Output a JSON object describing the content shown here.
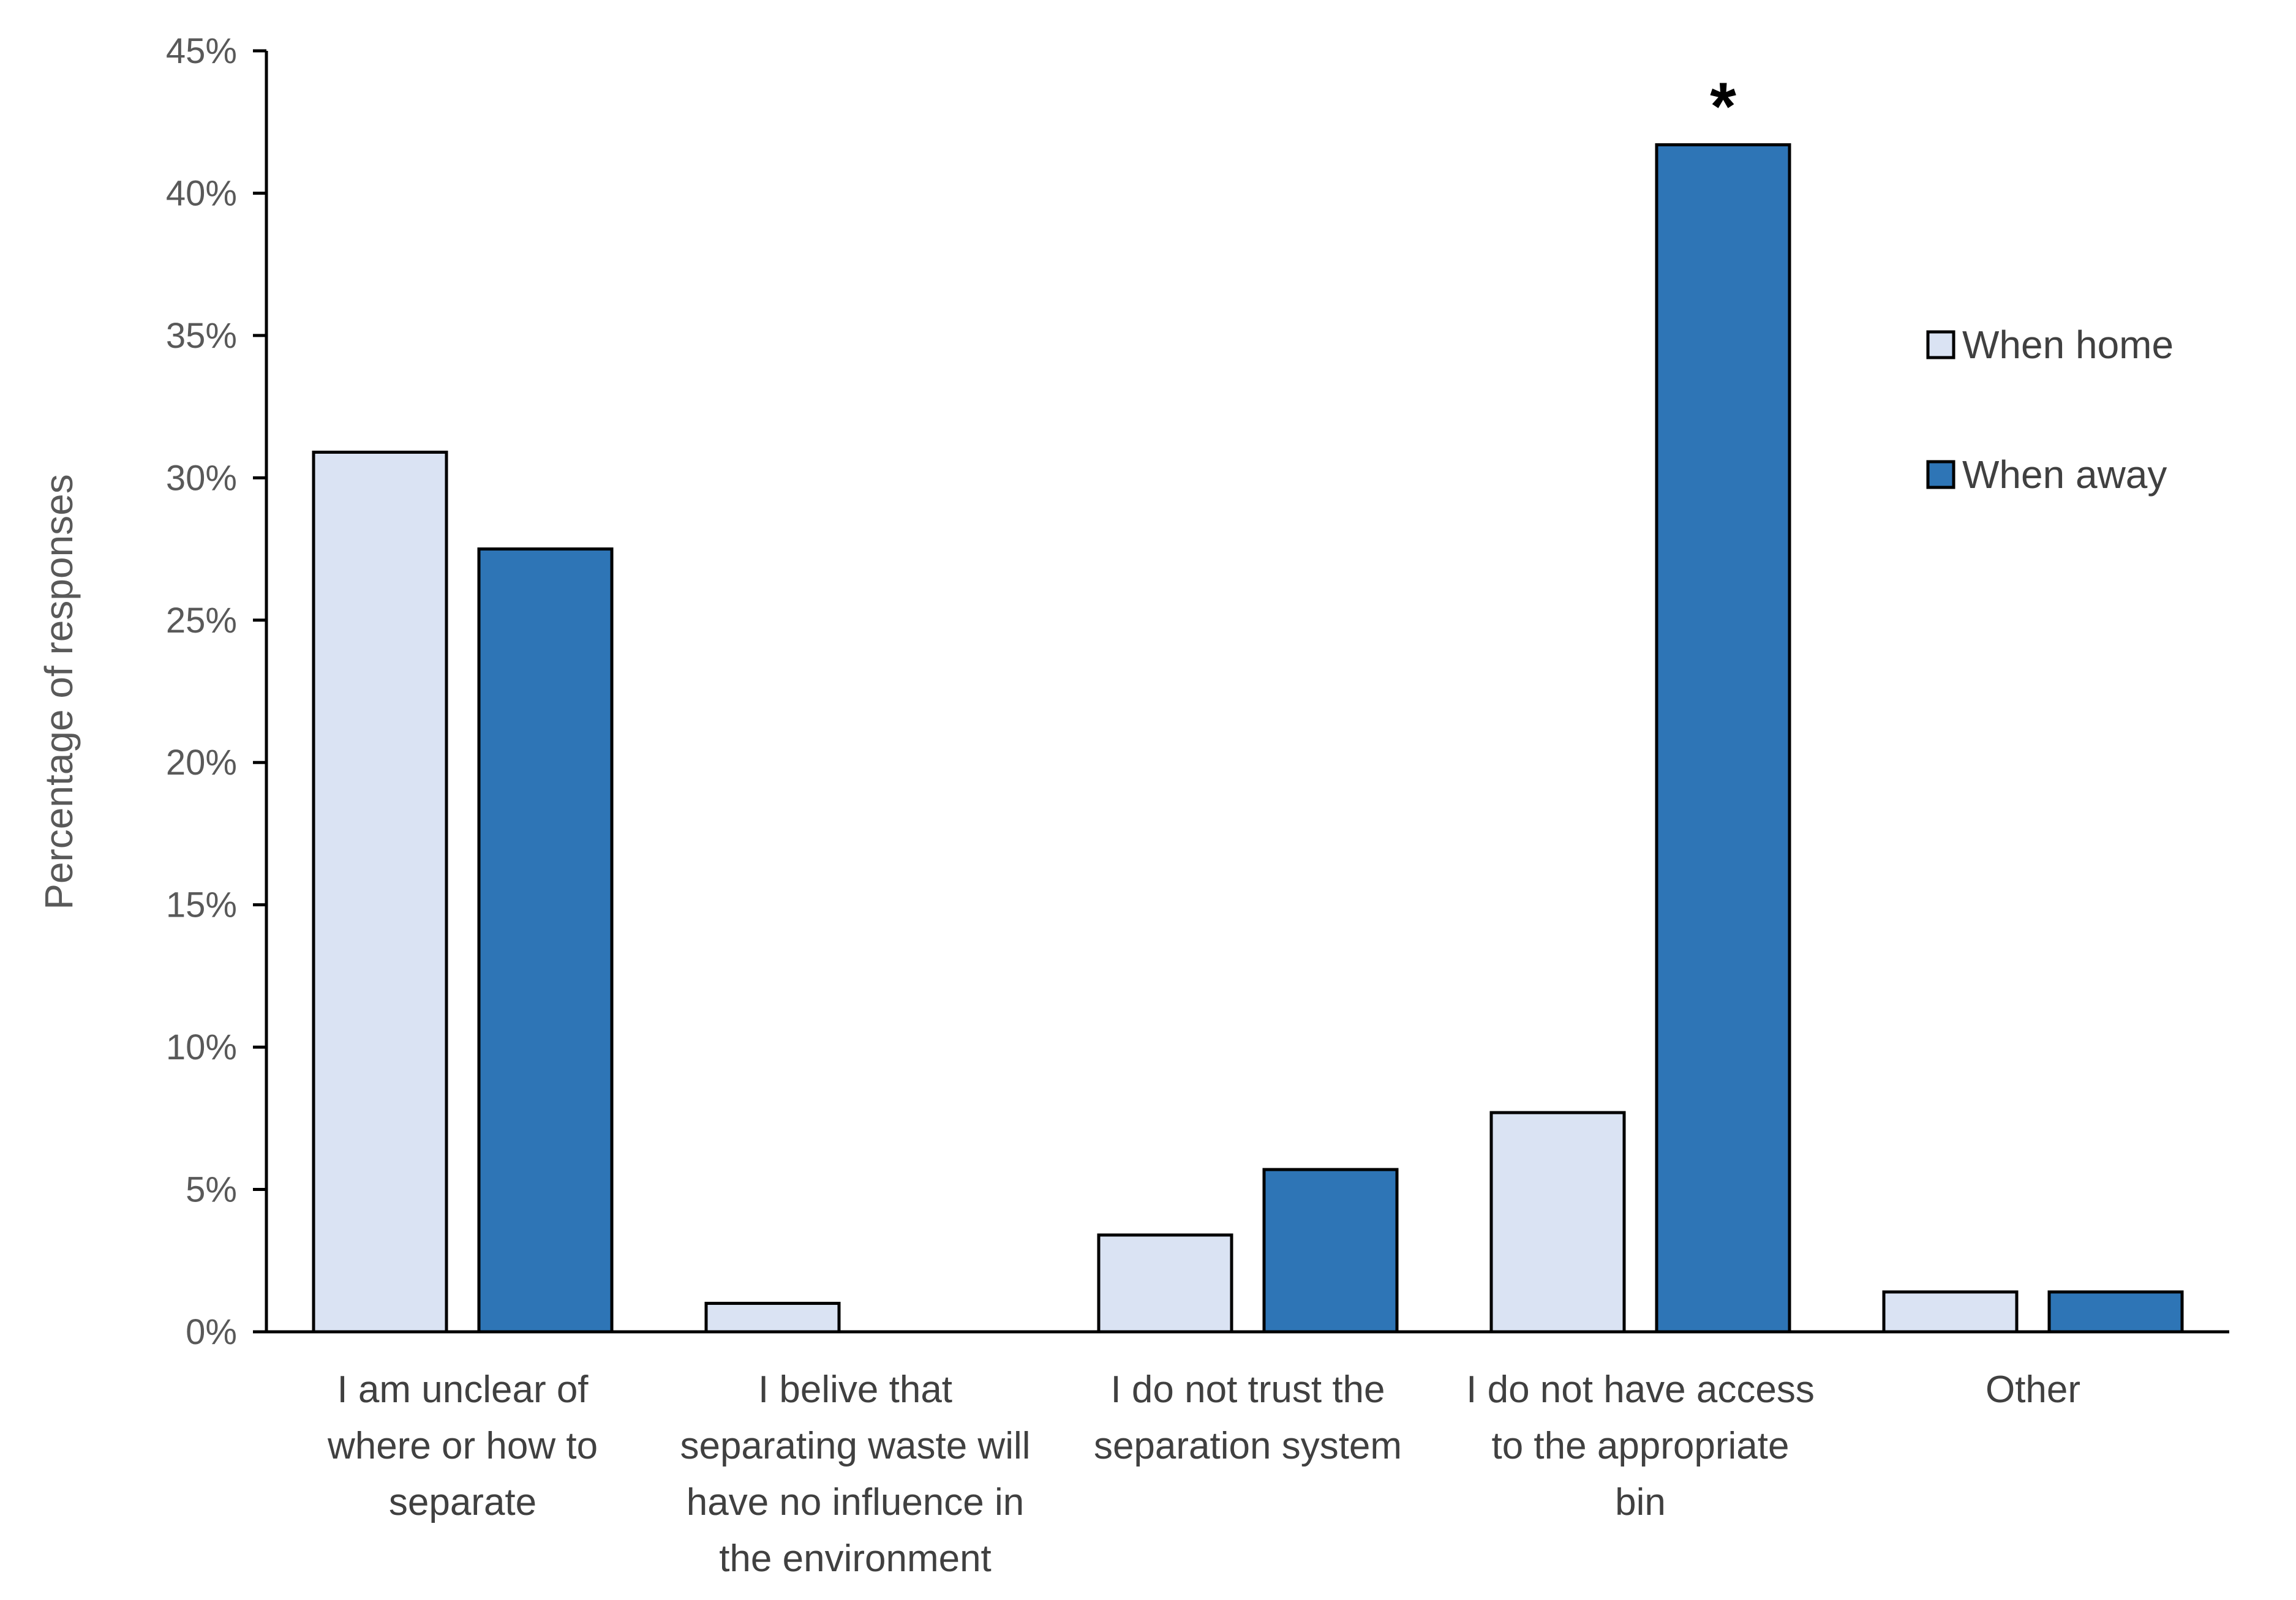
{
  "chart_data": {
    "type": "bar",
    "title": "",
    "xlabel": "",
    "ylabel": "Percentage of responses",
    "ylim": [
      0,
      45
    ],
    "yticks": [
      "0%",
      "5%",
      "10%",
      "15%",
      "20%",
      "25%",
      "30%",
      "35%",
      "40%",
      "45%"
    ],
    "ytick_values": [
      0,
      5,
      10,
      15,
      20,
      25,
      30,
      35,
      40,
      45
    ],
    "categories": [
      [
        "I am unclear of",
        "where or how to",
        "separate"
      ],
      [
        "I belive that",
        "separating waste will",
        "have no influence in",
        "the environment"
      ],
      [
        "I do not trust the",
        "separation system"
      ],
      [
        "I do not have access",
        "to the appropriate",
        "bin"
      ],
      [
        "Other"
      ]
    ],
    "series": [
      {
        "name": "When home",
        "color": "#dae3f3",
        "values": [
          30.9,
          1.0,
          3.4,
          7.7,
          1.4
        ]
      },
      {
        "name": "When away",
        "color": "#2e75b6",
        "values": [
          27.5,
          0.0,
          5.7,
          41.7,
          1.4
        ]
      }
    ],
    "annotations": [
      {
        "text": "*",
        "category_index": 3,
        "series_index": 1
      }
    ],
    "legend": "right",
    "grid": false
  }
}
